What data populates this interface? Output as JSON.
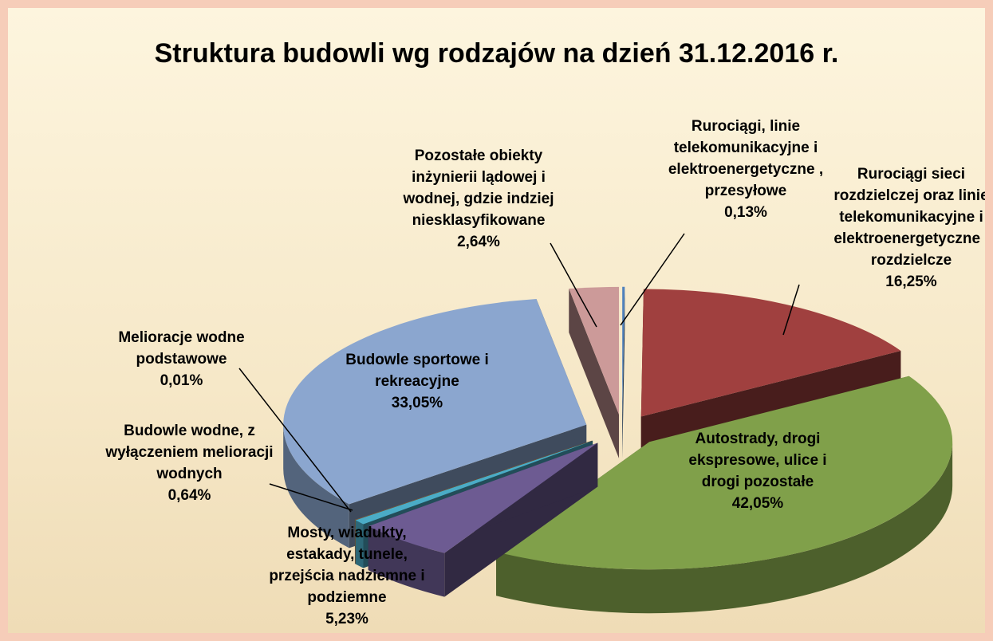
{
  "chart_data": {
    "type": "pie3d",
    "title": "Struktura budowli wg rodzajów na dzień 31.12.2016 r.",
    "categories": [
      "Rurociągi, linie telekomunikacyjne i elektroenergetyczne , przesyłowe",
      "Rurociągi sieci rozdzielczej oraz linie telekomunikacyjne i elektroenergetyczne , rozdzielcze",
      "Autostrady, drogi ekspresowe, ulice i drogi pozostałe",
      "Mosty, wiadukty, estakady, tunele, przejścia nadziemne i podziemne",
      "Budowle wodne, z wyłączeniem melioracji wodnych",
      "Melioracje wodne podstawowe",
      "Budowle sportowe i rekreacyjne",
      "Pozostałe obiekty inżynierii lądowej i wodnej, gdzie indziej niesklasyfikowane"
    ],
    "values": [
      0.13,
      16.25,
      42.05,
      5.23,
      0.64,
      0.01,
      33.05,
      2.64
    ],
    "value_labels": [
      "0,13%",
      "16,25%",
      "42,05%",
      "5,23%",
      "0,64%",
      "0,01%",
      "33,05%",
      "2,64%"
    ],
    "colors": [
      "#4f81bd",
      "#a0403f",
      "#80a04a",
      "#6d5b92",
      "#4bacc6",
      "#f79646",
      "#8ba6cf",
      "#cc9a99"
    ]
  }
}
